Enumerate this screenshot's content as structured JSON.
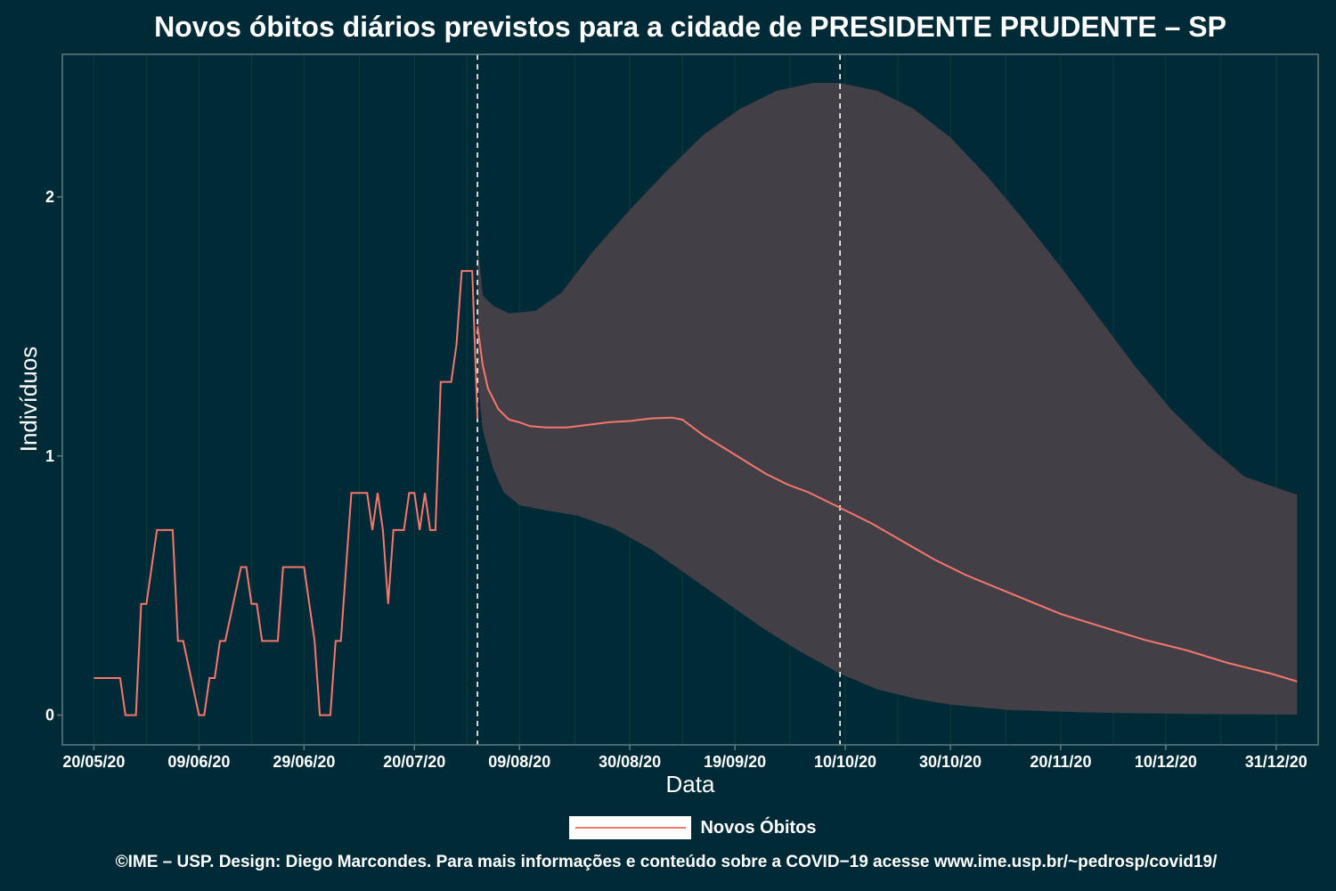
{
  "colors": {
    "background": "#002b36",
    "line": "#f8766d",
    "band": "#423f46",
    "frame": "#5f7a80",
    "grid": "#0f3a44",
    "vline": "#ffffff"
  },
  "legend": {
    "label": "Novos Óbitos"
  },
  "caption": "©IME – USP. Design: Diego Marcondes. Para mais informações e conteúdo sobre a COVID−19 acesse www.ime.usp.br/~pedrosp/covid19/",
  "chart_data": {
    "type": "line",
    "title": "Novos óbitos diários previstos para a cidade de PRESIDENTE PRUDENTE – SP",
    "xlabel": "Data",
    "ylabel": "Indivíduos",
    "x_tick_labels": [
      "20/05/20",
      "09/06/20",
      "29/06/20",
      "20/07/20",
      "09/08/20",
      "30/08/20",
      "19/09/20",
      "10/10/20",
      "30/10/20",
      "20/11/20",
      "10/12/20",
      "31/12/20"
    ],
    "x_tick_dates": [
      "2020-05-20",
      "2020-06-09",
      "2020-06-29",
      "2020-07-20",
      "2020-08-09",
      "2020-08-30",
      "2020-09-19",
      "2020-10-10",
      "2020-10-30",
      "2020-11-20",
      "2020-12-10",
      "2020-12-31"
    ],
    "xlim": [
      "2020-05-14",
      "2021-01-08"
    ],
    "y_ticks": [
      0,
      1,
      2
    ],
    "ylim": [
      -0.115,
      2.55
    ],
    "grid": "vertical minor",
    "legend_position": "bottom",
    "vertical_lines": [
      "2020-08-01",
      "2020-10-09"
    ],
    "observed": {
      "name": "Novos Óbitos",
      "points": [
        [
          "2020-05-20",
          0.143
        ],
        [
          "2020-05-25",
          0.143
        ],
        [
          "2020-05-26",
          0
        ],
        [
          "2020-05-28",
          0
        ],
        [
          "2020-05-29",
          0.429
        ],
        [
          "2020-05-30",
          0.429
        ],
        [
          "2020-06-01",
          0.714
        ],
        [
          "2020-06-04",
          0.714
        ],
        [
          "2020-06-05",
          0.286
        ],
        [
          "2020-06-06",
          0.286
        ],
        [
          "2020-06-09",
          0
        ],
        [
          "2020-06-10",
          0
        ],
        [
          "2020-06-11",
          0.143
        ],
        [
          "2020-06-12",
          0.143
        ],
        [
          "2020-06-13",
          0.286
        ],
        [
          "2020-06-14",
          0.286
        ],
        [
          "2020-06-17",
          0.571
        ],
        [
          "2020-06-18",
          0.571
        ],
        [
          "2020-06-19",
          0.429
        ],
        [
          "2020-06-20",
          0.429
        ],
        [
          "2020-06-21",
          0.286
        ],
        [
          "2020-06-24",
          0.286
        ],
        [
          "2020-06-25",
          0.571
        ],
        [
          "2020-06-29",
          0.571
        ],
        [
          "2020-07-01",
          0.286
        ],
        [
          "2020-07-02",
          0
        ],
        [
          "2020-07-04",
          0
        ],
        [
          "2020-07-05",
          0.286
        ],
        [
          "2020-07-06",
          0.286
        ],
        [
          "2020-07-08",
          0.857
        ],
        [
          "2020-07-11",
          0.857
        ],
        [
          "2020-07-12",
          0.714
        ],
        [
          "2020-07-13",
          0.857
        ],
        [
          "2020-07-14",
          0.714
        ],
        [
          "2020-07-15",
          0.429
        ],
        [
          "2020-07-16",
          0.714
        ],
        [
          "2020-07-18",
          0.714
        ],
        [
          "2020-07-19",
          0.857
        ],
        [
          "2020-07-20",
          0.857
        ],
        [
          "2020-07-21",
          0.714
        ],
        [
          "2020-07-22",
          0.857
        ],
        [
          "2020-07-23",
          0.714
        ],
        [
          "2020-07-24",
          0.714
        ],
        [
          "2020-07-25",
          1.286
        ],
        [
          "2020-07-27",
          1.286
        ],
        [
          "2020-07-28",
          1.429
        ],
        [
          "2020-07-29",
          1.714
        ],
        [
          "2020-07-31",
          1.714
        ],
        [
          "2020-08-01",
          1.143
        ]
      ]
    },
    "forecast": {
      "points": [
        [
          "2020-08-01",
          1.5
        ],
        [
          "2020-08-02",
          1.35
        ],
        [
          "2020-08-03",
          1.26
        ],
        [
          "2020-08-05",
          1.18
        ],
        [
          "2020-08-07",
          1.14
        ],
        [
          "2020-08-09",
          1.13
        ],
        [
          "2020-08-11",
          1.115
        ],
        [
          "2020-08-14",
          1.11
        ],
        [
          "2020-08-18",
          1.11
        ],
        [
          "2020-08-22",
          1.12
        ],
        [
          "2020-08-26",
          1.13
        ],
        [
          "2020-08-30",
          1.135
        ],
        [
          "2020-09-03",
          1.145
        ],
        [
          "2020-09-07",
          1.148
        ],
        [
          "2020-09-09",
          1.14
        ],
        [
          "2020-09-13",
          1.08
        ],
        [
          "2020-09-17",
          1.03
        ],
        [
          "2020-09-21",
          0.98
        ],
        [
          "2020-09-25",
          0.93
        ],
        [
          "2020-09-29",
          0.89
        ],
        [
          "2020-10-03",
          0.86
        ],
        [
          "2020-10-09",
          0.8
        ],
        [
          "2020-10-15",
          0.74
        ],
        [
          "2020-10-21",
          0.67
        ],
        [
          "2020-10-27",
          0.6
        ],
        [
          "2020-11-02",
          0.54
        ],
        [
          "2020-11-08",
          0.49
        ],
        [
          "2020-11-14",
          0.44
        ],
        [
          "2020-11-20",
          0.39
        ],
        [
          "2020-11-28",
          0.34
        ],
        [
          "2020-12-06",
          0.29
        ],
        [
          "2020-12-14",
          0.25
        ],
        [
          "2020-12-22",
          0.2
        ],
        [
          "2020-12-30",
          0.16
        ],
        [
          "2021-01-04",
          0.13
        ]
      ]
    },
    "band": {
      "upper": [
        [
          "2020-08-01",
          1.83
        ],
        [
          "2020-08-02",
          1.62
        ],
        [
          "2020-08-04",
          1.58
        ],
        [
          "2020-08-07",
          1.55
        ],
        [
          "2020-08-12",
          1.56
        ],
        [
          "2020-08-17",
          1.63
        ],
        [
          "2020-08-23",
          1.79
        ],
        [
          "2020-08-30",
          1.95
        ],
        [
          "2020-09-06",
          2.1
        ],
        [
          "2020-09-13",
          2.24
        ],
        [
          "2020-09-20",
          2.34
        ],
        [
          "2020-09-27",
          2.41
        ],
        [
          "2020-10-04",
          2.44
        ],
        [
          "2020-10-09",
          2.44
        ],
        [
          "2020-10-16",
          2.41
        ],
        [
          "2020-10-23",
          2.34
        ],
        [
          "2020-10-30",
          2.23
        ],
        [
          "2020-11-06",
          2.08
        ],
        [
          "2020-11-13",
          1.91
        ],
        [
          "2020-11-20",
          1.73
        ],
        [
          "2020-11-27",
          1.54
        ],
        [
          "2020-12-04",
          1.35
        ],
        [
          "2020-12-11",
          1.18
        ],
        [
          "2020-12-18",
          1.04
        ],
        [
          "2020-12-25",
          0.92
        ],
        [
          "2021-01-04",
          0.85
        ]
      ],
      "lower": [
        [
          "2020-08-01",
          1.3
        ],
        [
          "2020-08-02",
          1.1
        ],
        [
          "2020-08-04",
          0.95
        ],
        [
          "2020-08-06",
          0.86
        ],
        [
          "2020-08-09",
          0.81
        ],
        [
          "2020-08-14",
          0.79
        ],
        [
          "2020-08-20",
          0.77
        ],
        [
          "2020-08-27",
          0.72
        ],
        [
          "2020-09-03",
          0.64
        ],
        [
          "2020-09-10",
          0.54
        ],
        [
          "2020-09-17",
          0.44
        ],
        [
          "2020-09-24",
          0.34
        ],
        [
          "2020-10-01",
          0.25
        ],
        [
          "2020-10-09",
          0.16
        ],
        [
          "2020-10-16",
          0.1
        ],
        [
          "2020-10-23",
          0.065
        ],
        [
          "2020-10-30",
          0.04
        ],
        [
          "2020-11-10",
          0.02
        ],
        [
          "2020-11-25",
          0.01
        ],
        [
          "2020-12-15",
          0.004
        ],
        [
          "2021-01-04",
          0.002
        ]
      ]
    }
  }
}
